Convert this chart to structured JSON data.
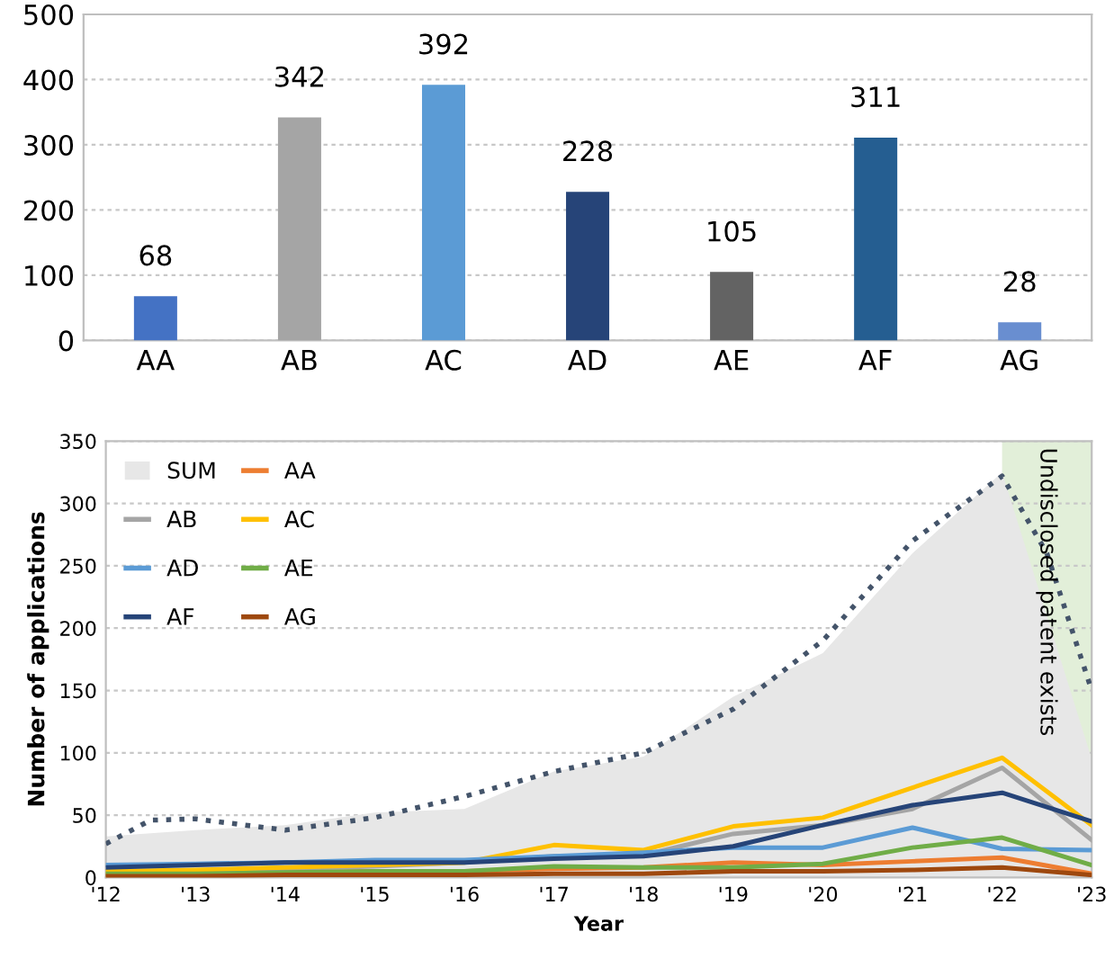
{
  "chart_data": [
    {
      "type": "bar",
      "categories": [
        "AA",
        "AB",
        "AC",
        "AD",
        "AE",
        "AF",
        "AG"
      ],
      "values": [
        68,
        342,
        392,
        228,
        105,
        311,
        28
      ],
      "colors": [
        "#4472c4",
        "#a5a5a5",
        "#5b9bd5",
        "#264478",
        "#636363",
        "#255e91",
        "#698ed0"
      ],
      "ylim": [
        0,
        500
      ],
      "yticks": [
        0,
        100,
        200,
        300,
        400,
        500
      ],
      "grid": "y",
      "data_labels": true,
      "legend": false
    },
    {
      "type": "line",
      "xlabel": "Year",
      "ylabel": "Number of applications",
      "x": [
        2012,
        2013,
        2014,
        2015,
        2016,
        2017,
        2018,
        2019,
        2020,
        2021,
        2022,
        2023
      ],
      "series": [
        {
          "name": "SUM",
          "type": "area",
          "color": "#e7e7e7",
          "values": [
            33,
            38,
            42,
            52,
            55,
            85,
            97,
            145,
            180,
            260,
            325,
            95
          ]
        },
        {
          "name": "AA",
          "color": "#ed7d31",
          "values": [
            2,
            3,
            4,
            5,
            5,
            7,
            8,
            12,
            10,
            13,
            16,
            3
          ]
        },
        {
          "name": "AB",
          "color": "#a5a5a5",
          "values": [
            5,
            5,
            7,
            9,
            12,
            17,
            18,
            35,
            42,
            55,
            88,
            30
          ]
        },
        {
          "name": "AC",
          "color": "#ffc000",
          "values": [
            5,
            6,
            8,
            10,
            12,
            26,
            22,
            41,
            48,
            72,
            96,
            42
          ]
        },
        {
          "name": "AD",
          "color": "#5b9bd5",
          "values": [
            10,
            11,
            12,
            14,
            14,
            17,
            20,
            24,
            24,
            40,
            23,
            22
          ]
        },
        {
          "name": "AE",
          "color": "#70ad47",
          "values": [
            3,
            3,
            4,
            5,
            5,
            9,
            8,
            8,
            11,
            24,
            32,
            10
          ]
        },
        {
          "name": "AF",
          "color": "#264478",
          "values": [
            8,
            10,
            12,
            12,
            12,
            15,
            17,
            25,
            42,
            58,
            68,
            45
          ]
        },
        {
          "name": "AG",
          "color": "#9e480e",
          "values": [
            1,
            1,
            2,
            2,
            2,
            3,
            3,
            5,
            5,
            6,
            8,
            2
          ]
        },
        {
          "type": "line",
          "color": "#44546a",
          "line_style": "dotted",
          "x": [
            2012,
            2012.5,
            2013,
            2014,
            2015,
            2016,
            2017,
            2018,
            2019,
            2020,
            2021,
            2022,
            2022.5,
            2023
          ],
          "values": [
            27,
            46,
            47,
            38,
            48,
            65,
            85,
            100,
            135,
            190,
            270,
            322,
            260,
            150
          ]
        }
      ],
      "xlim": [
        2012,
        2023
      ],
      "xticks": [
        {
          "value": 2012,
          "label": "'12"
        },
        {
          "value": 2013,
          "label": "'13"
        },
        {
          "value": 2014,
          "label": "'14"
        },
        {
          "value": 2015,
          "label": "'15"
        },
        {
          "value": 2016,
          "label": "'16"
        },
        {
          "value": 2017,
          "label": "'17"
        },
        {
          "value": 2018,
          "label": "'18"
        },
        {
          "value": 2019,
          "label": "'19"
        },
        {
          "value": 2020,
          "label": "'20"
        },
        {
          "value": 2021,
          "label": "'21"
        },
        {
          "value": 2022,
          "label": "'22"
        },
        {
          "value": 2023,
          "label": "'23"
        }
      ],
      "ylim": [
        0,
        350
      ],
      "yticks": [
        0,
        50,
        100,
        150,
        200,
        250,
        300,
        350
      ],
      "grid": "y",
      "legend": "top left",
      "bands": [
        {
          "axis": "x",
          "from": 2022,
          "to": 2023,
          "label": "Undisclosed patent exists",
          "color": "#e2efd9"
        }
      ]
    }
  ]
}
